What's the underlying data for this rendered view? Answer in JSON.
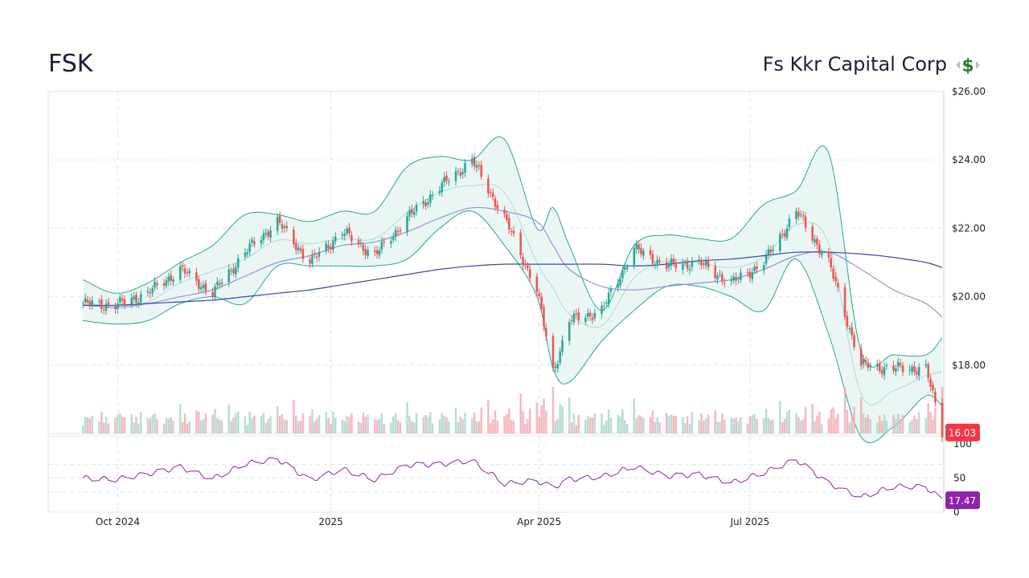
{
  "header": {
    "ticker": "FSK",
    "company": "Fs Kkr Capital Corp",
    "logo_icon": "dollar-sign-icon"
  },
  "colors": {
    "up": "#26a69a",
    "down": "#ef5350",
    "band_fill": "#e6f4f2",
    "band_line": "#26a69a",
    "sma_fast": "#9b8fd6",
    "sma_slow": "#3949ab",
    "rsi": "#8e24aa",
    "grid": "#dde6ee"
  },
  "chart_data": [
    {
      "type": "candlestick",
      "ylim": [
        16.0,
        26.0
      ],
      "y_ticks": [
        "$26.00",
        "$24.00",
        "$22.00",
        "$20.00",
        "$18.00"
      ],
      "x_ticks": [
        "Oct 2024",
        "2025",
        "Apr 2025",
        "Jul 2025"
      ],
      "last_price_label": "16.03",
      "series": [
        {
          "kind": "close",
          "x": [
            "2024-09-16",
            "2024-09-30",
            "2024-10-14",
            "2024-10-28",
            "2024-11-11",
            "2024-11-25",
            "2024-12-09",
            "2024-12-23",
            "2025-01-06",
            "2025-01-20",
            "2025-02-03",
            "2025-02-17",
            "2025-03-03",
            "2025-03-17",
            "2025-03-31",
            "2025-04-07",
            "2025-04-14",
            "2025-04-28",
            "2025-05-12",
            "2025-05-26",
            "2025-06-09",
            "2025-06-23",
            "2025-07-07",
            "2025-07-21",
            "2025-08-04",
            "2025-08-18",
            "2025-09-01",
            "2025-09-15",
            "2025-09-22"
          ],
          "values": [
            19.8,
            19.75,
            20.1,
            20.8,
            20.1,
            21.3,
            22.2,
            21.0,
            21.9,
            21.2,
            22.3,
            23.2,
            24.0,
            22.3,
            20.2,
            17.8,
            19.3,
            19.6,
            21.4,
            20.9,
            21.0,
            20.4,
            21.0,
            22.5,
            21.0,
            18.0,
            17.9,
            17.9,
            16.03
          ]
        },
        {
          "kind": "bollinger_upper",
          "values": [
            20.5,
            20.1,
            20.4,
            21.0,
            21.5,
            22.4,
            22.4,
            22.2,
            22.5,
            22.5,
            23.8,
            24.1,
            24.0,
            24.6,
            22.0,
            22.6,
            21.5,
            19.6,
            21.5,
            21.8,
            21.7,
            21.7,
            22.7,
            23.1,
            24.2,
            18.4,
            18.3,
            18.3,
            18.8
          ]
        },
        {
          "kind": "bollinger_lower",
          "values": [
            19.3,
            19.2,
            19.3,
            19.8,
            20.0,
            19.8,
            20.9,
            20.9,
            20.9,
            20.9,
            21.1,
            22.0,
            22.5,
            21.5,
            20.0,
            17.9,
            17.5,
            18.7,
            19.6,
            20.3,
            20.3,
            20.0,
            19.6,
            21.1,
            18.9,
            15.9,
            16.2,
            17.1,
            16.8
          ]
        },
        {
          "kind": "sma_50",
          "values": [
            19.75,
            19.7,
            19.8,
            20.0,
            20.2,
            20.6,
            21.0,
            21.2,
            21.5,
            21.6,
            21.9,
            22.3,
            22.6,
            22.5,
            22.2,
            21.5,
            20.8,
            20.3,
            20.2,
            20.3,
            20.4,
            20.5,
            20.8,
            21.2,
            21.3,
            20.8,
            20.2,
            19.8,
            19.4
          ]
        },
        {
          "kind": "sma_200",
          "values": [
            19.75,
            19.75,
            19.8,
            19.85,
            19.9,
            20.0,
            20.1,
            20.2,
            20.35,
            20.5,
            20.65,
            20.8,
            20.9,
            20.95,
            20.95,
            20.95,
            20.95,
            20.95,
            20.9,
            20.95,
            21.05,
            21.1,
            21.2,
            21.3,
            21.3,
            21.25,
            21.15,
            21.0,
            20.85
          ]
        }
      ]
    },
    {
      "type": "line",
      "name": "RSI",
      "ylim": [
        0,
        100
      ],
      "y_ticks": [
        "100",
        "50",
        "0"
      ],
      "last_value_label": "17.47",
      "values": [
        50,
        48,
        56,
        66,
        49,
        71,
        78,
        47,
        63,
        48,
        69,
        70,
        76,
        42,
        46,
        36,
        48,
        52,
        67,
        53,
        55,
        43,
        58,
        77,
        42,
        22,
        38,
        37,
        17.47
      ]
    }
  ]
}
